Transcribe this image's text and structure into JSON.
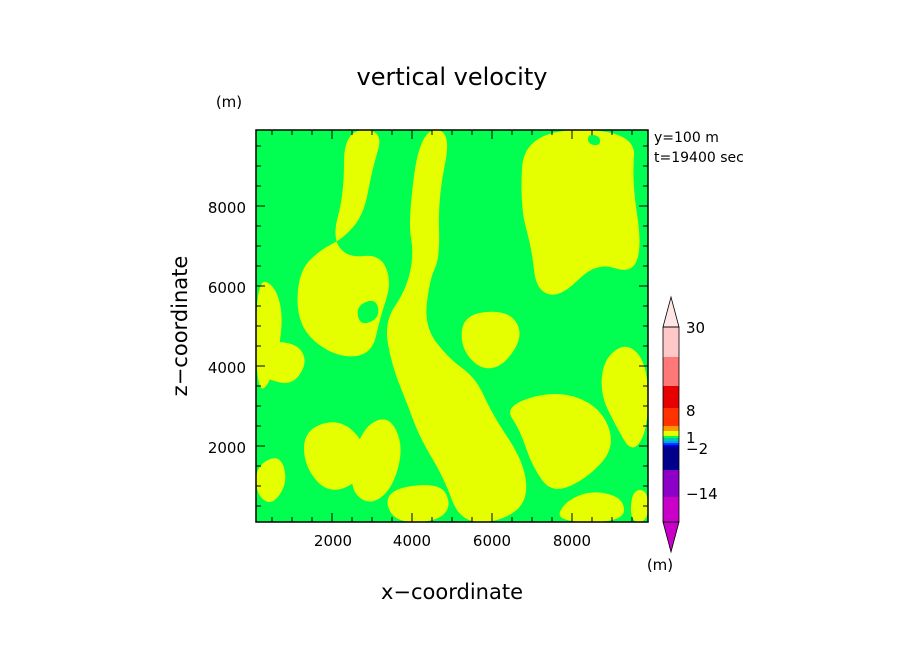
{
  "chart_data": {
    "type": "heatmap",
    "title": "vertical velocity",
    "xlabel": "x−coordinate",
    "ylabel": "z−coordinate",
    "x_unit": "(m)",
    "y_unit": "(m)",
    "xlim": [
      100,
      9900
    ],
    "ylim": [
      100,
      9900
    ],
    "x_ticks": [
      "2000",
      "4000",
      "6000",
      "8000"
    ],
    "y_ticks": [
      "2000",
      "4000",
      "6000",
      "8000"
    ],
    "annotations": [
      "y=100 m",
      "t=19400 sec"
    ],
    "colorbar": {
      "unit": "(m)",
      "labels": [
        "30",
        "8",
        "1",
        "−2",
        "−14"
      ],
      "label_values": [
        30,
        8,
        1,
        -2,
        -14
      ],
      "levels": [
        -14,
        -8,
        -6,
        -4,
        -2,
        -1,
        0,
        1,
        2,
        4,
        8,
        15,
        30
      ],
      "colors": [
        "#c800c8",
        "#8c00c8",
        "#00008c",
        "#0000dc",
        "#003cff",
        "#00a0ff",
        "#00c8a0",
        "#00ff50",
        "#e6ff00",
        "#ff9600",
        "#ff3200",
        "#e60000",
        "#ff7878",
        "#ffc8c8",
        "#ffe6e6"
      ]
    },
    "field_colors": {
      "positive_small": "#e6ff00",
      "negative_small": "#00ff50"
    },
    "grid": false
  }
}
